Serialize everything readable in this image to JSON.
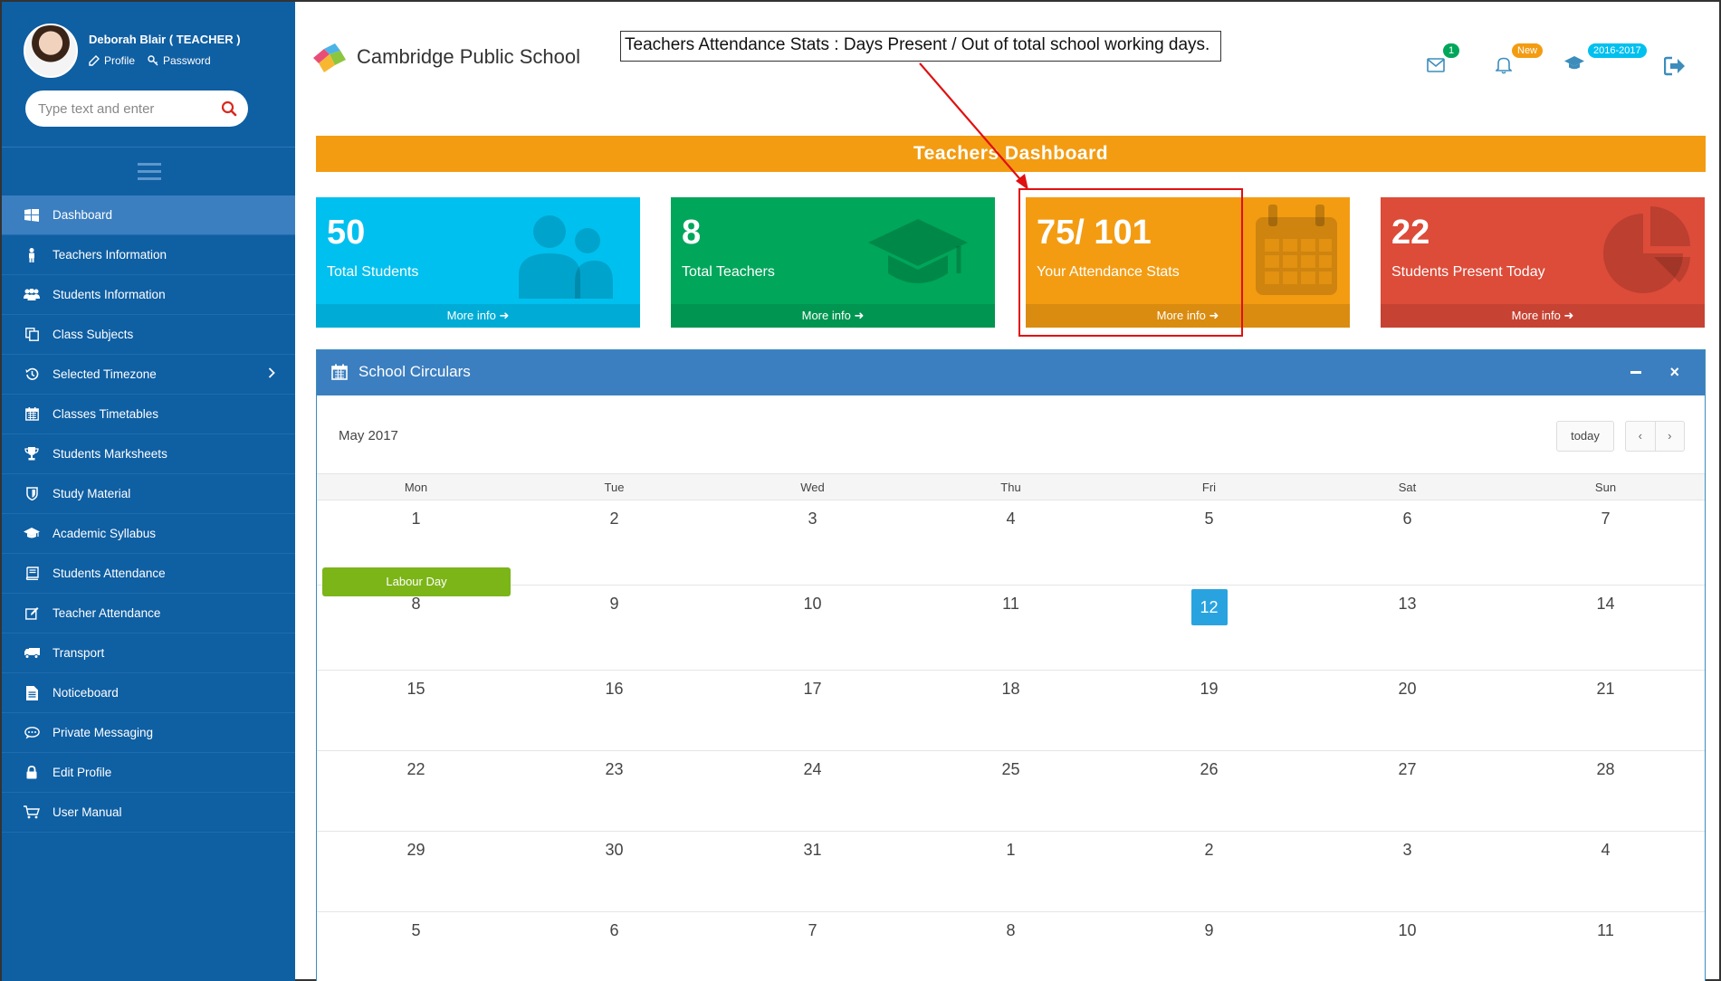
{
  "user": {
    "name": "Deborah Blair ( TEACHER )",
    "profile_label": "Profile",
    "password_label": "Password"
  },
  "search": {
    "placeholder": "Type text and enter"
  },
  "sidebar": {
    "items": [
      {
        "label": "Dashboard",
        "icon": "dashboard-icon"
      },
      {
        "label": "Teachers Information",
        "icon": "person-icon"
      },
      {
        "label": "Students Information",
        "icon": "users-icon"
      },
      {
        "label": "Class Subjects",
        "icon": "copy-icon"
      },
      {
        "label": "Selected Timezone",
        "icon": "history-icon"
      },
      {
        "label": "Classes Timetables",
        "icon": "calendar-icon"
      },
      {
        "label": "Students Marksheets",
        "icon": "trophy-icon"
      },
      {
        "label": "Study Material",
        "icon": "shield-icon"
      },
      {
        "label": "Academic Syllabus",
        "icon": "graduation-cap-icon"
      },
      {
        "label": "Students Attendance",
        "icon": "book-icon"
      },
      {
        "label": "Teacher Attendance",
        "icon": "edit-icon"
      },
      {
        "label": "Transport",
        "icon": "truck-icon"
      },
      {
        "label": "Noticeboard",
        "icon": "file-icon"
      },
      {
        "label": "Private Messaging",
        "icon": "chat-icon"
      },
      {
        "label": "Edit Profile",
        "icon": "lock-icon"
      },
      {
        "label": "User Manual",
        "icon": "cart-icon"
      }
    ]
  },
  "header": {
    "brand": "Cambridge Public School",
    "callout": "Teachers Attendance Stats : Days Present / Out of total school working days.",
    "mail_badge": "1",
    "bell_badge": "New",
    "session_badge": "2016-2017"
  },
  "dashboard": {
    "title": "Teachers Dashboard",
    "boxes": [
      {
        "value": "50",
        "label": "Total Students",
        "more": "More info"
      },
      {
        "value": "8",
        "label": "Total Teachers",
        "more": "More info"
      },
      {
        "value": "75/ 101",
        "label": "Your Attendance Stats",
        "more": "More info"
      },
      {
        "value": "22",
        "label": "Students Present Today",
        "more": "More info"
      }
    ]
  },
  "colors": {
    "sidebar": "#0f5fa3",
    "blue": "#00c0ef",
    "green": "#00a65a",
    "orange": "#f39c12",
    "red": "#dd4b39",
    "panel": "#3c7fc0"
  },
  "calendar": {
    "panel_title": "School Circulars",
    "month": "May 2017",
    "today_label": "today",
    "prev_label": "‹",
    "next_label": "›",
    "days": [
      "Mon",
      "Tue",
      "Wed",
      "Thu",
      "Fri",
      "Sat",
      "Sun"
    ],
    "weeks": [
      [
        "1",
        "2",
        "3",
        "4",
        "5",
        "6",
        "7"
      ],
      [
        "8",
        "9",
        "10",
        "11",
        "12",
        "13",
        "14"
      ],
      [
        "15",
        "16",
        "17",
        "18",
        "19",
        "20",
        "21"
      ],
      [
        "22",
        "23",
        "24",
        "25",
        "26",
        "27",
        "28"
      ],
      [
        "29",
        "30",
        "31",
        "1",
        "2",
        "3",
        "4"
      ],
      [
        "5",
        "6",
        "7",
        "8",
        "9",
        "10",
        "11"
      ]
    ],
    "event": "Labour Day"
  }
}
